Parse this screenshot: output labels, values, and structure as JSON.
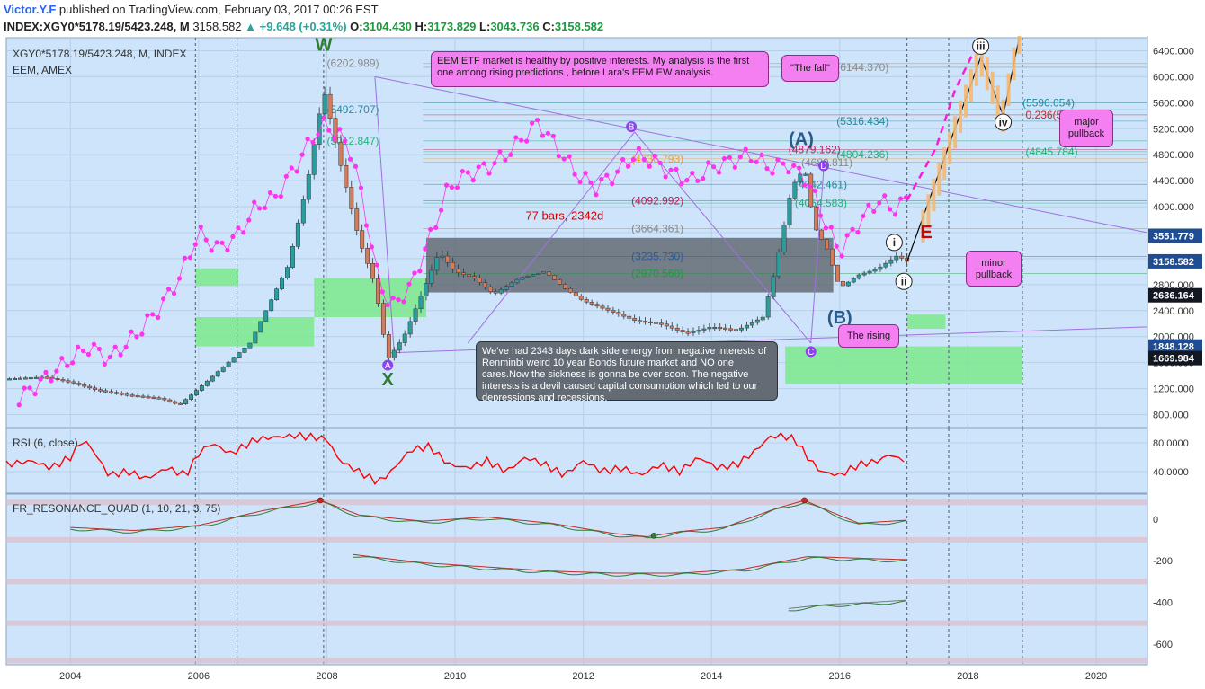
{
  "header": {
    "author": "Victor.Y.F",
    "published": "published on TradingView.com, February 03, 2017 00:26 EST",
    "symbol_line": "INDEX:XGY0*5178.19/5423.248, M",
    "last_price": "3158.582",
    "change": "+9.648 (+0.31%)",
    "open_label": "O:",
    "open": "3104.430",
    "high_label": "H:",
    "high": "3173.829",
    "low_label": "L:",
    "low": "3043.736",
    "close_label": "C:",
    "close": "3158.582"
  },
  "legend": {
    "main_title": "XGY0*5178.19/5423.248, M, INDEX",
    "overlay_title": "EEM, AMEX"
  },
  "colors": {
    "pane_bg": "#cde4fb",
    "grid": "#b7cfe8",
    "candle_up": "#2d9c9c",
    "candle_down": "#d37b5c",
    "eem_dots": "#ff33ee",
    "rsi_line": "#ff0000",
    "green_zone": "#7bea8c",
    "dark_box": "#555c63",
    "axis_badge_blue": "#1e4d93",
    "axis_badge_black": "#131722"
  },
  "chart_data": {
    "type": "candlestick",
    "title": "XGY0*5178.19/5423.248, M, INDEX",
    "y_axis": {
      "range": [
        600,
        6600
      ],
      "ticks": [
        800,
        1200,
        1600,
        2000,
        2400,
        2800,
        3200,
        3600,
        4000,
        4400,
        4800,
        5200,
        5600,
        6000,
        6400
      ],
      "tick_labels": [
        "800.000",
        "1200.000",
        "1600.000",
        "2000.000",
        "2400.000",
        "2800.000",
        "3200.000",
        "3600.000",
        "4000.000",
        "4400.000",
        "4800.000",
        "5200.000",
        "5600.000",
        "6000.000",
        "6400.000"
      ]
    },
    "x_axis": {
      "range": [
        2003.0,
        2020.8
      ],
      "ticks": [
        2004,
        2006,
        2008,
        2010,
        2012,
        2014,
        2016,
        2018,
        2020
      ],
      "tick_labels": [
        "2004",
        "2006",
        "2008",
        "2010",
        "2012",
        "2014",
        "2016",
        "2018",
        "2020"
      ]
    },
    "price_anchors": [
      [
        2003.0,
        1350
      ],
      [
        2003.6,
        1380
      ],
      [
        2004.0,
        1300
      ],
      [
        2004.4,
        1180
      ],
      [
        2004.9,
        1100
      ],
      [
        2005.4,
        1050
      ],
      [
        2005.7,
        950
      ],
      [
        2006.0,
        1200
      ],
      [
        2006.4,
        1550
      ],
      [
        2006.8,
        1900
      ],
      [
        2007.0,
        2300
      ],
      [
        2007.4,
        3100
      ],
      [
        2007.7,
        4400
      ],
      [
        2007.95,
        5800
      ],
      [
        2008.2,
        4700
      ],
      [
        2008.5,
        3500
      ],
      [
        2008.75,
        2800
      ],
      [
        2008.95,
        1650
      ],
      [
        2009.2,
        2000
      ],
      [
        2009.5,
        2700
      ],
      [
        2009.75,
        3300
      ],
      [
        2010.0,
        3000
      ],
      [
        2010.3,
        2900
      ],
      [
        2010.6,
        2650
      ],
      [
        2011.0,
        2900
      ],
      [
        2011.4,
        3000
      ],
      [
        2011.7,
        2750
      ],
      [
        2012.0,
        2550
      ],
      [
        2012.4,
        2400
      ],
      [
        2012.8,
        2250
      ],
      [
        2013.2,
        2200
      ],
      [
        2013.6,
        2050
      ],
      [
        2014.0,
        2150
      ],
      [
        2014.4,
        2100
      ],
      [
        2014.8,
        2300
      ],
      [
        2015.0,
        3050
      ],
      [
        2015.25,
        4300
      ],
      [
        2015.45,
        4600
      ],
      [
        2015.6,
        3700
      ],
      [
        2015.8,
        3350
      ],
      [
        2016.0,
        2750
      ],
      [
        2016.3,
        2950
      ],
      [
        2016.6,
        3050
      ],
      [
        2016.9,
        3250
      ],
      [
        2017.05,
        3158
      ]
    ],
    "eem_overlay_anchors": [
      [
        2003.2,
        1050
      ],
      [
        2003.6,
        1350
      ],
      [
        2004.0,
        1650
      ],
      [
        2004.3,
        1850
      ],
      [
        2004.6,
        1650
      ],
      [
        2005.0,
        2000
      ],
      [
        2005.4,
        2450
      ],
      [
        2005.7,
        2900
      ],
      [
        2006.0,
        3600
      ],
      [
        2006.3,
        3350
      ],
      [
        2006.6,
        3550
      ],
      [
        2006.9,
        4000
      ],
      [
        2007.2,
        4150
      ],
      [
        2007.5,
        4600
      ],
      [
        2007.8,
        5100
      ],
      [
        2007.95,
        5250
      ],
      [
        2008.2,
        5100
      ],
      [
        2008.4,
        4800
      ],
      [
        2008.6,
        3900
      ],
      [
        2008.8,
        2900
      ],
      [
        2009.0,
        2450
      ],
      [
        2009.3,
        2750
      ],
      [
        2009.6,
        3500
      ],
      [
        2009.9,
        4300
      ],
      [
        2010.2,
        4500
      ],
      [
        2010.5,
        4600
      ],
      [
        2010.8,
        4800
      ],
      [
        2011.0,
        5000
      ],
      [
        2011.3,
        5300
      ],
      [
        2011.6,
        4900
      ],
      [
        2011.9,
        4500
      ],
      [
        2012.2,
        4300
      ],
      [
        2012.5,
        4500
      ],
      [
        2012.8,
        4800
      ],
      [
        2013.1,
        4700
      ],
      [
        2013.4,
        4500
      ],
      [
        2013.7,
        4400
      ],
      [
        2014.0,
        4600
      ],
      [
        2014.3,
        4700
      ],
      [
        2014.6,
        4800
      ],
      [
        2014.9,
        4600
      ],
      [
        2015.2,
        4650
      ],
      [
        2015.5,
        4400
      ],
      [
        2015.8,
        3700
      ],
      [
        2016.0,
        3300
      ],
      [
        2016.3,
        3750
      ],
      [
        2016.6,
        4100
      ],
      [
        2016.9,
        3950
      ],
      [
        2017.05,
        4150
      ]
    ],
    "horizontal_levels": [
      {
        "label": "(6202.989)",
        "value": 6202.989,
        "color": "#8a8a8a"
      },
      {
        "label": "(5492.707)",
        "value": 5492.707,
        "color": "#2a8a9a"
      },
      {
        "label": "(5012.847)",
        "value": 5012.847,
        "color": "#24b07a"
      },
      {
        "label": "(6144.370)",
        "value": 6144.37,
        "color": "#8a8a8a"
      },
      {
        "label": "(5596.054)",
        "value": 5596.054,
        "color": "#2a8a9a"
      },
      {
        "label": "(5316.434)",
        "value": 5316.434,
        "color": "#2a8a9a"
      },
      {
        "label": "0.236(5413.195)",
        "value": 5413.195,
        "color": "#c62828"
      },
      {
        "label": "(4879.162)",
        "value": 4879.162,
        "color": "#c2185b"
      },
      {
        "label": "(4804.236)",
        "value": 4804.236,
        "color": "#24b07a"
      },
      {
        "label": "(4845.784)",
        "value": 4845.784,
        "color": "#24b07a"
      },
      {
        "label": "(4736.793)",
        "value": 4736.793,
        "color": "#f0a030"
      },
      {
        "label": "(4680.811)",
        "value": 4680.811,
        "color": "#8a8a8a"
      },
      {
        "label": "(4342.461)",
        "value": 4342.461,
        "color": "#2a8a9a"
      },
      {
        "label": "(4092.992)",
        "value": 4092.992,
        "color": "#c2185b"
      },
      {
        "label": "(4054.583)",
        "value": 4054.583,
        "color": "#24b07a"
      },
      {
        "label": "(3664.361)",
        "value": 3664.361,
        "color": "#8a8a8a"
      },
      {
        "label": "(3235.730)",
        "value": 3235.73,
        "color": "#2a5a9a"
      },
      {
        "label": "(2970.560)",
        "value": 2970.56,
        "color": "#1a9b3c"
      }
    ],
    "price_badges": [
      {
        "label": "3551.779",
        "value": 3551.779,
        "color": "#1e4d93"
      },
      {
        "label": "3158.582",
        "value": 3158.582,
        "color": "#1e4d93"
      },
      {
        "label": "2636.164",
        "value": 2636.164,
        "color": "#131722"
      },
      {
        "label": "1848.128",
        "value": 1848.128,
        "color": "#1e4d93"
      },
      {
        "label": "1669.984",
        "value": 1669.984,
        "color": "#131722"
      }
    ],
    "wave_labels": [
      {
        "text": "W",
        "x": 2007.95,
        "y": 6500,
        "color": "#2e7d32"
      },
      {
        "text": "X",
        "x": 2008.95,
        "y": 1350,
        "color": "#2e7d32"
      },
      {
        "text": "(A)",
        "x": 2015.4,
        "y": 5050,
        "color": "#2a5a8a"
      },
      {
        "text": "(B)",
        "x": 2016.0,
        "y": 2300,
        "color": "#2a5a8a"
      },
      {
        "text": "A",
        "x": 2008.95,
        "y": 1560,
        "color": "#ffffff"
      },
      {
        "text": "B",
        "x": 2012.75,
        "y": 5230,
        "color": "#ffffff"
      },
      {
        "text": "C",
        "x": 2015.55,
        "y": 1770,
        "color": "#ffffff"
      },
      {
        "text": "D",
        "x": 2015.75,
        "y": 4630,
        "color": "#ffffff"
      },
      {
        "text": "E",
        "x": 2017.35,
        "y": 3620,
        "color": "#d50000"
      },
      {
        "text": "i",
        "x": 2016.85,
        "y": 3450,
        "color": "#222"
      },
      {
        "text": "ii",
        "x": 2017.0,
        "y": 2850,
        "color": "#222"
      },
      {
        "text": "iii",
        "x": 2018.2,
        "y": 6470,
        "color": "#222"
      },
      {
        "text": "iv",
        "x": 2018.55,
        "y": 5300,
        "color": "#222"
      }
    ],
    "projection_line": [
      [
        2017.05,
        3158
      ],
      [
        2018.2,
        6300
      ],
      [
        2018.55,
        5400
      ],
      [
        2018.8,
        6600
      ]
    ],
    "dashed_projection": [
      [
        2017.05,
        4100
      ],
      [
        2017.5,
        4900
      ],
      [
        2017.8,
        5800
      ],
      [
        2018.2,
        6600
      ]
    ],
    "vertical_dashed_dates": [
      2005.95,
      2006.6,
      2007.95,
      2017.05,
      2017.7,
      2018.85
    ],
    "annotation_bars": "77 bars, 2342d"
  },
  "annotations": {
    "eem_note": "EEM ETF market is healthy by positive interests. My analysis is the first one among rising predictions , before Lara's EEM EW analysis.",
    "fall_note": "\"The fall\"",
    "major_note": "major pullback",
    "minor_note": "minor pullback",
    "rising_note": "The rising",
    "dark_note": "We've had 2343 days dark side energy from negative interests of Renminbi weird 10 year Bonds future market and NO one cares.Now the sickness is gonna be over soon. The negative interests is a devil caused capital consumption which led to our depressions and recessions."
  },
  "rsi": {
    "title": "RSI (6, close)",
    "ticks": [
      "80.0000",
      "40.0000"
    ],
    "tick_values": [
      80,
      40
    ],
    "range": [
      10,
      100
    ],
    "anchors": [
      [
        2003.0,
        50
      ],
      [
        2003.4,
        55
      ],
      [
        2003.7,
        45
      ],
      [
        2004.0,
        60
      ],
      [
        2004.2,
        85
      ],
      [
        2004.35,
        70
      ],
      [
        2004.6,
        35
      ],
      [
        2004.9,
        40
      ],
      [
        2005.2,
        30
      ],
      [
        2005.5,
        45
      ],
      [
        2005.8,
        35
      ],
      [
        2006.0,
        65
      ],
      [
        2006.2,
        80
      ],
      [
        2006.5,
        65
      ],
      [
        2006.7,
        75
      ],
      [
        2006.9,
        85
      ],
      [
        2007.2,
        88
      ],
      [
        2007.5,
        90
      ],
      [
        2007.8,
        88
      ],
      [
        2008.0,
        85
      ],
      [
        2008.2,
        55
      ],
      [
        2008.5,
        40
      ],
      [
        2008.8,
        25
      ],
      [
        2009.0,
        40
      ],
      [
        2009.3,
        70
      ],
      [
        2009.6,
        75
      ],
      [
        2009.9,
        50
      ],
      [
        2010.2,
        45
      ],
      [
        2010.5,
        55
      ],
      [
        2010.8,
        40
      ],
      [
        2011.1,
        60
      ],
      [
        2011.4,
        50
      ],
      [
        2011.7,
        35
      ],
      [
        2012.0,
        55
      ],
      [
        2012.3,
        40
      ],
      [
        2012.6,
        45
      ],
      [
        2012.9,
        35
      ],
      [
        2013.2,
        50
      ],
      [
        2013.5,
        40
      ],
      [
        2013.8,
        60
      ],
      [
        2014.1,
        45
      ],
      [
        2014.4,
        50
      ],
      [
        2014.7,
        70
      ],
      [
        2014.9,
        88
      ],
      [
        2015.1,
        90
      ],
      [
        2015.3,
        85
      ],
      [
        2015.5,
        60
      ],
      [
        2015.7,
        40
      ],
      [
        2016.0,
        35
      ],
      [
        2016.3,
        50
      ],
      [
        2016.6,
        55
      ],
      [
        2016.8,
        65
      ],
      [
        2016.95,
        55
      ],
      [
        2017.05,
        60
      ]
    ]
  },
  "resonance": {
    "title": "FR_RESONANCE_QUAD (1, 10, 21, 3, 75)",
    "ticks": [
      "0",
      "-200",
      "-400",
      "-600"
    ],
    "tick_values": [
      0,
      -200,
      -400,
      -600
    ],
    "range": [
      -700,
      120
    ],
    "upper_line": [
      [
        2004.0,
        -40
      ],
      [
        2005.0,
        -55
      ],
      [
        2006.0,
        -30
      ],
      [
        2007.0,
        40
      ],
      [
        2007.9,
        90
      ],
      [
        2008.5,
        20
      ],
      [
        2009.5,
        -10
      ],
      [
        2010.5,
        10
      ],
      [
        2011.5,
        -20
      ],
      [
        2012.5,
        -70
      ],
      [
        2013.0,
        -85
      ],
      [
        2013.5,
        -60
      ],
      [
        2014.2,
        -40
      ],
      [
        2015.0,
        50
      ],
      [
        2015.45,
        90
      ],
      [
        2015.9,
        30
      ],
      [
        2016.3,
        -20
      ],
      [
        2016.8,
        -10
      ],
      [
        2017.05,
        -5
      ]
    ],
    "lower_line": [
      [
        2008.4,
        -170
      ],
      [
        2009.5,
        -210
      ],
      [
        2010.5,
        -230
      ],
      [
        2011.5,
        -250
      ],
      [
        2012.5,
        -260
      ],
      [
        2013.5,
        -260
      ],
      [
        2014.5,
        -240
      ],
      [
        2015.5,
        -180
      ],
      [
        2016.5,
        -190
      ],
      [
        2017.05,
        -195
      ]
    ],
    "bottom_line": [
      [
        2015.2,
        -430
      ],
      [
        2015.8,
        -410
      ],
      [
        2016.5,
        -400
      ],
      [
        2017.05,
        -390
      ]
    ]
  }
}
